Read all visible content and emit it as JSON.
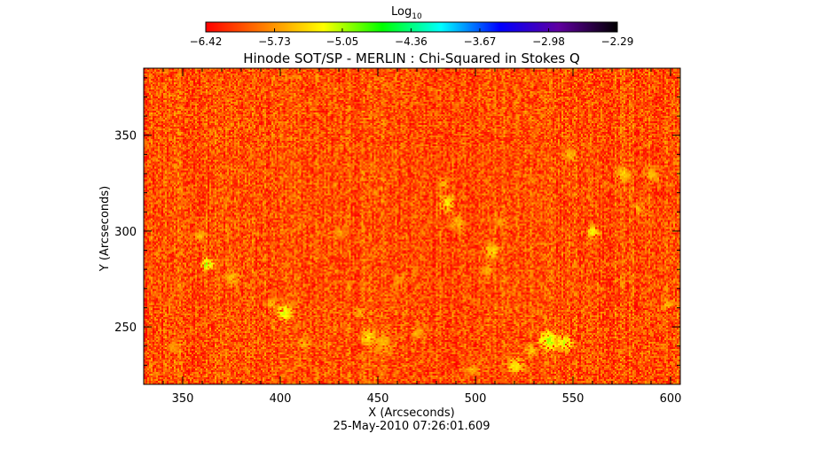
{
  "chart_data": {
    "type": "heatmap",
    "title": "Hinode SOT/SP - MERLIN : Chi-Squared in Stokes Q",
    "xlabel": "X (Arcseconds)",
    "ylabel": "Y (Arcseconds)",
    "timestamp": "25-May-2010 07:26:01.609",
    "xlim": [
      330,
      605
    ],
    "ylim": [
      220,
      385
    ],
    "x_ticks": [
      350,
      400,
      450,
      500,
      550,
      600
    ],
    "y_ticks": [
      250,
      300,
      350
    ],
    "colorbar": {
      "label_base": "Log",
      "label_sub": "10",
      "range": [
        -6.42,
        -2.29
      ],
      "ticks": [
        "-6.42",
        "-5.73",
        "-5.05",
        "-4.36",
        "-3.67",
        "-2.98",
        "-2.29"
      ],
      "colors": [
        "#ff0000",
        "#ff8000",
        "#ffff00",
        "#00ff00",
        "#00ffff",
        "#0000ff",
        "#6000a0",
        "#000000"
      ]
    },
    "background_level": -6.05,
    "noise_amplitude": 0.35,
    "stripe_amplitude": 0.12,
    "features": [
      {
        "x": 362,
        "y": 283,
        "level": -5.05,
        "size": 3
      },
      {
        "x": 358,
        "y": 298,
        "level": -5.6,
        "size": 3
      },
      {
        "x": 375,
        "y": 276,
        "level": -5.6,
        "size": 4
      },
      {
        "x": 402,
        "y": 258,
        "level": -5.2,
        "size": 4
      },
      {
        "x": 395,
        "y": 262,
        "level": -5.6,
        "size": 3
      },
      {
        "x": 445,
        "y": 245,
        "level": -5.4,
        "size": 4
      },
      {
        "x": 452,
        "y": 242,
        "level": -5.6,
        "size": 5
      },
      {
        "x": 485,
        "y": 315,
        "level": -5.3,
        "size": 4
      },
      {
        "x": 483,
        "y": 325,
        "level": -5.6,
        "size": 3
      },
      {
        "x": 490,
        "y": 305,
        "level": -5.6,
        "size": 4
      },
      {
        "x": 508,
        "y": 290,
        "level": -5.4,
        "size": 4
      },
      {
        "x": 506,
        "y": 280,
        "level": -5.6,
        "size": 3
      },
      {
        "x": 512,
        "y": 305,
        "level": -5.7,
        "size": 3
      },
      {
        "x": 520,
        "y": 230,
        "level": -5.3,
        "size": 4
      },
      {
        "x": 498,
        "y": 228,
        "level": -5.6,
        "size": 3
      },
      {
        "x": 537,
        "y": 243,
        "level": -5.1,
        "size": 5
      },
      {
        "x": 545,
        "y": 242,
        "level": -5.2,
        "size": 4
      },
      {
        "x": 528,
        "y": 238,
        "level": -5.5,
        "size": 3
      },
      {
        "x": 560,
        "y": 300,
        "level": -5.3,
        "size": 3
      },
      {
        "x": 575,
        "y": 330,
        "level": -5.5,
        "size": 4
      },
      {
        "x": 590,
        "y": 330,
        "level": -5.6,
        "size": 4
      },
      {
        "x": 598,
        "y": 262,
        "level": -5.6,
        "size": 3
      },
      {
        "x": 412,
        "y": 242,
        "level": -5.6,
        "size": 3
      },
      {
        "x": 345,
        "y": 240,
        "level": -5.7,
        "size": 3
      },
      {
        "x": 548,
        "y": 340,
        "level": -5.6,
        "size": 3
      },
      {
        "x": 460,
        "y": 275,
        "level": -5.7,
        "size": 3
      },
      {
        "x": 430,
        "y": 300,
        "level": -5.7,
        "size": 3
      },
      {
        "x": 440,
        "y": 258,
        "level": -5.6,
        "size": 3
      },
      {
        "x": 470,
        "y": 247,
        "level": -5.6,
        "size": 3
      },
      {
        "x": 583,
        "y": 312,
        "level": -5.6,
        "size": 3
      }
    ]
  }
}
